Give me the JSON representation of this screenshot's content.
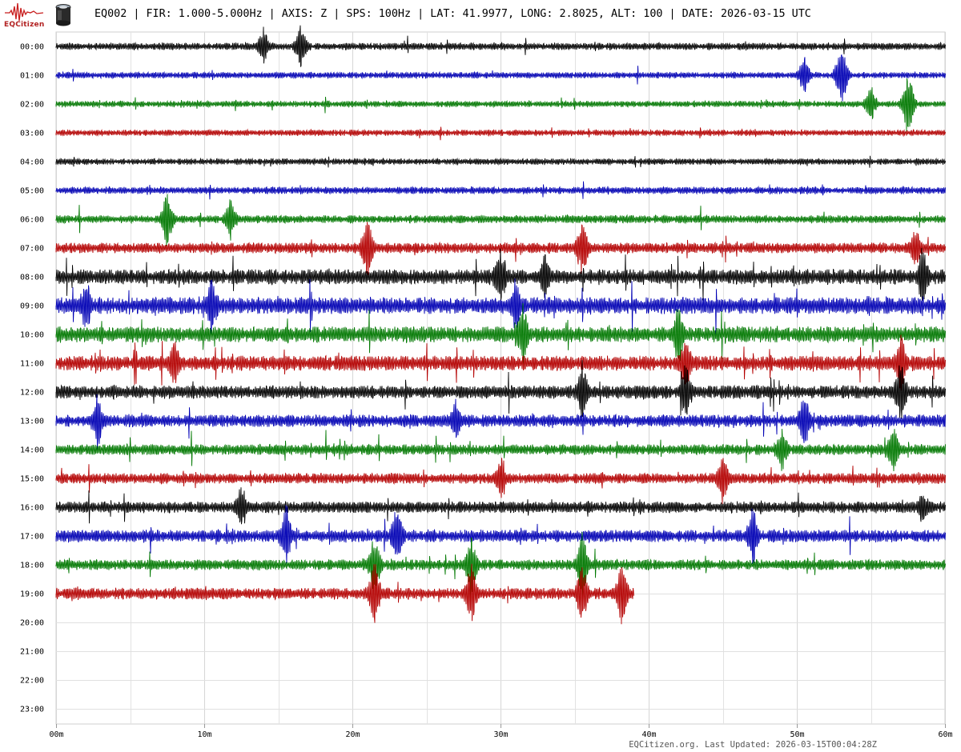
{
  "header": {
    "logo_text": "EQCitizen",
    "station_line": "EQ002 | FIR: 1.000-5.000Hz | AXIS: Z | SPS: 100Hz | LAT: 41.9977, LONG: 2.8025, ALT: 100 | DATE: 2026-03-15 UTC"
  },
  "footer": {
    "updated": "EQCitizen.org. Last Updated: 2026-03-15T00:04:28Z"
  },
  "chart_data": {
    "type": "line",
    "title": "EQ002 | FIR: 1.000-5.000Hz | AXIS: Z | SPS: 100Hz | LAT: 41.9977, LONG: 2.8025, ALT: 100 | DATE: 2026-03-15 UTC",
    "xlabel": "",
    "ylabel": "",
    "xlim": [
      0,
      60
    ],
    "x_ticks": [
      "00m",
      "10m",
      "20m",
      "30m",
      "40m",
      "50m",
      "60m"
    ],
    "y_tick_labels": [
      "00:00",
      "01:00",
      "02:00",
      "03:00",
      "04:00",
      "05:00",
      "06:00",
      "07:00",
      "08:00",
      "09:00",
      "10:00",
      "11:00",
      "12:00",
      "13:00",
      "14:00",
      "15:00",
      "16:00",
      "17:00",
      "18:00",
      "19:00",
      "20:00",
      "21:00",
      "22:00",
      "23:00"
    ],
    "grid": true,
    "trace_colors": [
      "#000000",
      "#0000b4",
      "#007800",
      "#b40000"
    ],
    "series": [
      {
        "hour": "00:00",
        "end_min": 60,
        "level": 0.25,
        "events": [
          [
            14,
            0.6
          ],
          [
            16.5,
            0.7
          ]
        ]
      },
      {
        "hour": "01:00",
        "end_min": 60,
        "level": 0.2,
        "events": [
          [
            50.5,
            0.6
          ],
          [
            53,
            1.0
          ]
        ]
      },
      {
        "hour": "02:00",
        "end_min": 60,
        "level": 0.2,
        "events": [
          [
            55,
            0.6
          ],
          [
            57.5,
            1.0
          ]
        ]
      },
      {
        "hour": "03:00",
        "end_min": 60,
        "level": 0.2,
        "events": []
      },
      {
        "hour": "04:00",
        "end_min": 60,
        "level": 0.2,
        "events": []
      },
      {
        "hour": "05:00",
        "end_min": 60,
        "level": 0.25,
        "events": []
      },
      {
        "hour": "06:00",
        "end_min": 60,
        "level": 0.3,
        "events": [
          [
            7.5,
            0.9
          ],
          [
            11.8,
            0.7
          ]
        ]
      },
      {
        "hour": "07:00",
        "end_min": 60,
        "level": 0.45,
        "events": [
          [
            21,
            1.0
          ],
          [
            35.5,
            1.0
          ],
          [
            58,
            0.7
          ]
        ]
      },
      {
        "hour": "08:00",
        "end_min": 60,
        "level": 0.7,
        "events": [
          [
            30,
            1.0
          ],
          [
            58.5,
            1.0
          ],
          [
            33,
            0.8
          ]
        ]
      },
      {
        "hour": "09:00",
        "end_min": 60,
        "level": 0.8,
        "events": [
          [
            2,
            0.9
          ],
          [
            10.5,
            1.0
          ],
          [
            31,
            0.9
          ]
        ]
      },
      {
        "hour": "10:00",
        "end_min": 60,
        "level": 0.75,
        "events": [
          [
            31.5,
            1.0
          ],
          [
            42,
            1.0
          ]
        ]
      },
      {
        "hour": "11:00",
        "end_min": 60,
        "level": 0.7,
        "events": [
          [
            8,
            0.9
          ],
          [
            42.5,
            1.0
          ],
          [
            57,
            1.0
          ]
        ]
      },
      {
        "hour": "12:00",
        "end_min": 60,
        "level": 0.6,
        "events": [
          [
            35.5,
            1.0
          ],
          [
            42.5,
            1.0
          ],
          [
            57,
            1.0
          ]
        ]
      },
      {
        "hour": "13:00",
        "end_min": 60,
        "level": 0.55,
        "events": [
          [
            2.8,
            0.9
          ],
          [
            27,
            0.7
          ],
          [
            50.5,
            1.0
          ]
        ]
      },
      {
        "hour": "14:00",
        "end_min": 60,
        "level": 0.45,
        "events": [
          [
            49,
            0.7
          ],
          [
            56.5,
            0.8
          ]
        ]
      },
      {
        "hour": "15:00",
        "end_min": 60,
        "level": 0.45,
        "events": [
          [
            30,
            0.7
          ],
          [
            45,
            0.8
          ]
        ]
      },
      {
        "hour": "16:00",
        "end_min": 60,
        "level": 0.5,
        "events": [
          [
            12.5,
            0.8
          ],
          [
            58.5,
            0.6
          ]
        ]
      },
      {
        "hour": "17:00",
        "end_min": 60,
        "level": 0.55,
        "events": [
          [
            15.5,
            1.0
          ],
          [
            23,
            1.0
          ],
          [
            47,
            0.9
          ]
        ]
      },
      {
        "hour": "18:00",
        "end_min": 60,
        "level": 0.45,
        "events": [
          [
            21.5,
            1.0
          ],
          [
            28,
            1.0
          ],
          [
            35.5,
            1.0
          ]
        ]
      },
      {
        "hour": "19:00",
        "end_min": 39,
        "level": 0.5,
        "events": [
          [
            21.5,
            1.0
          ],
          [
            28,
            1.0
          ],
          [
            35.5,
            1.0
          ],
          [
            38.2,
            1.0
          ]
        ]
      },
      {
        "hour": "20:00",
        "end_min": 0,
        "level": 0,
        "events": []
      },
      {
        "hour": "21:00",
        "end_min": 0,
        "level": 0,
        "events": []
      },
      {
        "hour": "22:00",
        "end_min": 0,
        "level": 0,
        "events": []
      },
      {
        "hour": "23:00",
        "end_min": 0,
        "level": 0,
        "events": []
      }
    ]
  }
}
